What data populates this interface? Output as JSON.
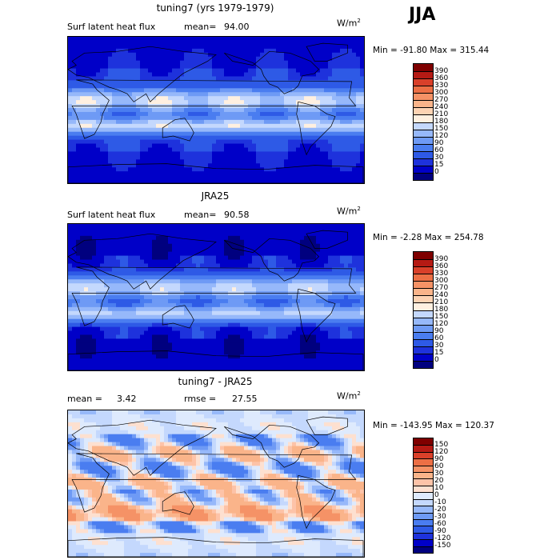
{
  "season_label": "JJA",
  "units": "W/m",
  "units_exp": "2",
  "panels": [
    {
      "title": "tuning7 (yrs 1979-1979)",
      "left_label": "Surf latent heat flux",
      "stat_label": "mean=",
      "stat_value": "94.00",
      "min_max": "Min = -91.80 Max = 315.44",
      "colorbar_labels": [
        "390",
        "360",
        "330",
        "300",
        "270",
        "240",
        "210",
        "180",
        "150",
        "120",
        "90",
        "60",
        "30",
        "15",
        "0"
      ],
      "scheme": "abs",
      "mean_value": 94.0
    },
    {
      "title": "JRA25",
      "left_label": "Surf latent heat flux",
      "stat_label": "mean=",
      "stat_value": "90.58",
      "min_max": "Min = -2.28 Max = 254.78",
      "colorbar_labels": [
        "390",
        "360",
        "330",
        "300",
        "270",
        "240",
        "210",
        "180",
        "150",
        "120",
        "90",
        "60",
        "30",
        "15",
        "0"
      ],
      "scheme": "abs",
      "mean_value": 90.58
    },
    {
      "title": "tuning7 - JRA25",
      "mean_label": "mean =",
      "mean_text": "3.42",
      "rmse_label": "rmse =",
      "rmse_text": "27.55",
      "min_max": "Min = -143.95 Max = 120.37",
      "colorbar_labels": [
        "150",
        "120",
        "90",
        "60",
        "30",
        "20",
        "10",
        "0",
        "-10",
        "-20",
        "-30",
        "-60",
        "-90",
        "-120",
        "-150"
      ],
      "scheme": "diff",
      "mean_value": 3.42,
      "rmse_value": 27.55
    }
  ],
  "colors": {
    "abs_scale": [
      "#00007f",
      "#0000c8",
      "#1e32dc",
      "#2e5ae6",
      "#4a7df0",
      "#6e9af5",
      "#96b8fa",
      "#c4d8fd",
      "#fff0e0",
      "#fdd3b3",
      "#fab48a",
      "#f59266",
      "#ec6f45",
      "#d9402a",
      "#b51a14",
      "#7f0000"
    ],
    "diff_scale": [
      "#00007f",
      "#0000c8",
      "#1e32dc",
      "#2e5ae6",
      "#4a7df0",
      "#6e9af5",
      "#96b8fa",
      "#c4d8fd",
      "#deeafd",
      "#fde0d0",
      "#fdc3a8",
      "#fab48a",
      "#f59266",
      "#ec6f45",
      "#d9402a",
      "#b51a14",
      "#7f0000"
    ],
    "land_outline": "#000000"
  },
  "chart_data": [
    {
      "type": "heatmap",
      "title": "tuning7 (yrs 1979-1979)",
      "variable": "Surf latent heat flux",
      "units": "W/m^2",
      "mean": 94.0,
      "min": -91.8,
      "max": 315.44,
      "levels": [
        0,
        15,
        30,
        60,
        90,
        120,
        150,
        180,
        210,
        240,
        270,
        300,
        330,
        360,
        390
      ]
    },
    {
      "type": "heatmap",
      "title": "JRA25",
      "variable": "Surf latent heat flux",
      "units": "W/m^2",
      "mean": 90.58,
      "min": -2.28,
      "max": 254.78,
      "levels": [
        0,
        15,
        30,
        60,
        90,
        120,
        150,
        180,
        210,
        240,
        270,
        300,
        330,
        360,
        390
      ]
    },
    {
      "type": "heatmap",
      "title": "tuning7 - JRA25",
      "units": "W/m^2",
      "mean": 3.42,
      "rmse": 27.55,
      "min": -143.95,
      "max": 120.37,
      "levels": [
        -150,
        -120,
        -90,
        -60,
        -30,
        -20,
        -10,
        0,
        10,
        20,
        30,
        60,
        90,
        120,
        150
      ]
    }
  ]
}
